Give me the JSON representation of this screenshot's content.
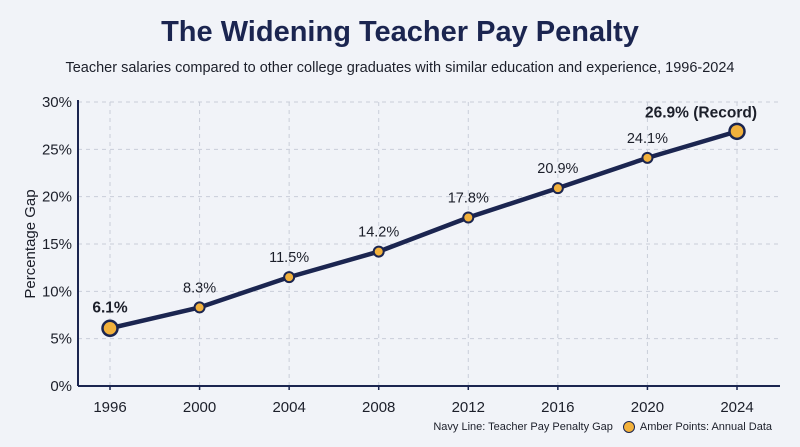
{
  "chart_data": {
    "type": "line",
    "title": "The Widening Teacher Pay Penalty",
    "subtitle": "Teacher salaries compared to other college graduates with similar education and experience, 1996-2024",
    "xlabel": "",
    "ylabel": "Percentage Gap",
    "x": [
      1996,
      2000,
      2004,
      2008,
      2012,
      2016,
      2020,
      2024
    ],
    "series": [
      {
        "name": "Teacher Pay Penalty Gap",
        "values": [
          6.1,
          8.3,
          11.5,
          14.2,
          17.8,
          20.9,
          24.1,
          26.9
        ]
      }
    ],
    "data_labels": [
      "6.1%",
      "8.3%",
      "11.5%",
      "14.2%",
      "17.8%",
      "20.9%",
      "24.1%",
      "26.9% (Record)"
    ],
    "ylim": [
      0,
      30
    ],
    "yticks": [
      0,
      5,
      10,
      15,
      20,
      25,
      30
    ],
    "ytick_labels": [
      "0%",
      "5%",
      "10%",
      "15%",
      "20%",
      "25%",
      "30%"
    ],
    "xtick_labels": [
      "1996",
      "2000",
      "2004",
      "2008",
      "2012",
      "2016",
      "2020",
      "2024"
    ],
    "grid": true,
    "line_color": "#1b2550",
    "marker_color": "#f2b13c",
    "legend": {
      "placement": "bottom-right",
      "line_entry": "Navy Line: Teacher Pay Penalty Gap",
      "marker_entry": "Amber Points: Annual Data"
    }
  }
}
